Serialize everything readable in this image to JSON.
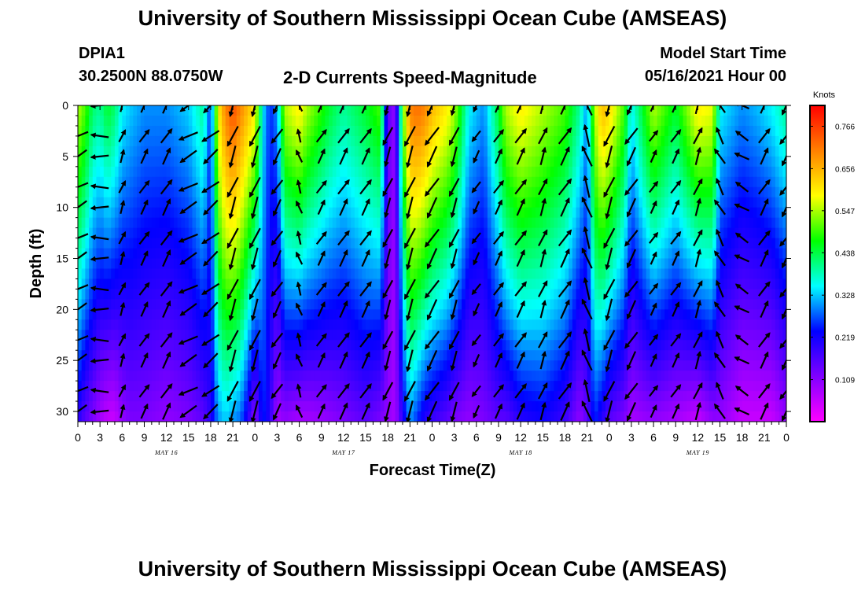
{
  "header": {
    "title_top": "University of Southern Mississippi Ocean Cube (AMSEAS)",
    "station": "DPIA1",
    "coords": "30.2500N  88.0750W",
    "subtitle": "2-D Currents Speed-Magnitude",
    "model_start_label": "Model Start Time",
    "model_start_value": "05/16/2021 Hour 00",
    "title_bottom": "University of Southern Mississippi Ocean Cube (AMSEAS)"
  },
  "chart_data": {
    "type": "heatmap",
    "xlabel": "Forecast Time(Z)",
    "ylabel": "Depth (ft)",
    "x_hours_range": [
      0,
      96
    ],
    "y_depth_range": [
      0,
      31
    ],
    "x_tick_labels": [
      "0",
      "3",
      "6",
      "9",
      "12",
      "15",
      "18",
      "21",
      "0",
      "3",
      "6",
      "9",
      "12",
      "15",
      "18",
      "21",
      "0",
      "3",
      "6",
      "9",
      "12",
      "15",
      "18",
      "21",
      "0",
      "3",
      "6",
      "9",
      "12",
      "15",
      "18",
      "21",
      "0"
    ],
    "y_ticks": [
      0,
      5,
      10,
      15,
      20,
      25,
      30
    ],
    "y_tick_labels": [
      "0",
      "5",
      "10",
      "15",
      "20",
      "25",
      "30"
    ],
    "day_labels": [
      "MAY 16",
      "MAY 17",
      "MAY 18",
      "MAY 19"
    ],
    "colorbar": {
      "title": "Knots",
      "range": [
        0,
        0.82
      ],
      "ticks": [
        0.766,
        0.656,
        0.547,
        0.438,
        0.328,
        0.219,
        0.109
      ],
      "tick_labels": [
        "0.766",
        "0.656",
        "0.547",
        "0.438",
        "0.328",
        "0.219",
        "0.109"
      ],
      "colors": [
        "#ff00ff",
        "#8000ff",
        "#0000ff",
        "#00ffff",
        "#00ff00",
        "#ffff00",
        "#ff8000",
        "#ff0000"
      ]
    },
    "speed_profile": {
      "hours": [
        0,
        1,
        2,
        3,
        4,
        5,
        6,
        7,
        9,
        12,
        15,
        17,
        18,
        19,
        20,
        21,
        22,
        23,
        24,
        25,
        26,
        27,
        28,
        30,
        31,
        34,
        36,
        39,
        41,
        42,
        43,
        44,
        45,
        46,
        47,
        48,
        50,
        51,
        53,
        55,
        57,
        58,
        60,
        63,
        66,
        68,
        69,
        70,
        71,
        72,
        74,
        75,
        78,
        81,
        84,
        86,
        87,
        90,
        92,
        94,
        96
      ],
      "surface_knots": [
        0.55,
        0.5,
        0.42,
        0.4,
        0.45,
        0.42,
        0.35,
        0.33,
        0.3,
        0.3,
        0.33,
        0.4,
        0.25,
        0.6,
        0.7,
        0.75,
        0.7,
        0.65,
        0.6,
        0.35,
        0.25,
        0.3,
        0.55,
        0.6,
        0.55,
        0.45,
        0.4,
        0.45,
        0.5,
        0.15,
        0.1,
        0.5,
        0.7,
        0.72,
        0.7,
        0.65,
        0.6,
        0.55,
        0.35,
        0.3,
        0.45,
        0.55,
        0.6,
        0.55,
        0.5,
        0.4,
        0.3,
        0.55,
        0.65,
        0.62,
        0.5,
        0.35,
        0.55,
        0.45,
        0.6,
        0.58,
        0.35,
        0.3,
        0.32,
        0.35,
        0.4
      ],
      "bottom_knots": [
        0.2,
        0.15,
        0.12,
        0.08,
        0.05,
        0.05,
        0.1,
        0.12,
        0.12,
        0.1,
        0.12,
        0.15,
        0.2,
        0.3,
        0.33,
        0.3,
        0.28,
        0.2,
        0.1,
        0.25,
        0.2,
        0.08,
        0.1,
        0.08,
        0.08,
        0.1,
        0.12,
        0.15,
        0.12,
        0.1,
        0.08,
        0.2,
        0.3,
        0.25,
        0.2,
        0.18,
        0.15,
        0.12,
        0.1,
        0.12,
        0.15,
        0.15,
        0.2,
        0.22,
        0.18,
        0.1,
        0.15,
        0.25,
        0.2,
        0.15,
        0.12,
        0.08,
        0.1,
        0.08,
        0.05,
        0.1,
        0.1,
        0.05,
        0.05,
        0.05,
        0.1
      ]
    },
    "vectors": {
      "hours": [
        0,
        3,
        6,
        9,
        12,
        15,
        18,
        21,
        24,
        27,
        30,
        33,
        36,
        39,
        42,
        45,
        48,
        51,
        54,
        57,
        60,
        63,
        66,
        69,
        72,
        75,
        78,
        81,
        84,
        87,
        90,
        93,
        96
      ],
      "depths_ft": [
        0,
        3,
        5,
        8,
        10,
        13,
        15,
        18,
        20,
        23,
        25,
        28,
        30
      ],
      "direction_deg_by_hour": [
        240,
        270,
        20,
        30,
        30,
        240,
        230,
        200,
        200,
        210,
        340,
        30,
        30,
        30,
        200,
        200,
        210,
        200,
        210,
        30,
        30,
        20,
        30,
        340,
        200,
        210,
        30,
        30,
        20,
        330,
        300,
        30,
        210
      ],
      "length_by_hour": [
        1,
        0.8,
        0.6,
        0.7,
        0.8,
        0.9,
        0.9,
        1,
        1,
        0.8,
        0.6,
        0.7,
        0.8,
        0.8,
        0.9,
        1,
        1,
        0.9,
        0.6,
        0.7,
        0.8,
        0.8,
        0.9,
        1,
        1,
        0.9,
        0.6,
        0.7,
        0.8,
        0.8,
        0.7,
        0.8,
        0.9
      ]
    }
  }
}
